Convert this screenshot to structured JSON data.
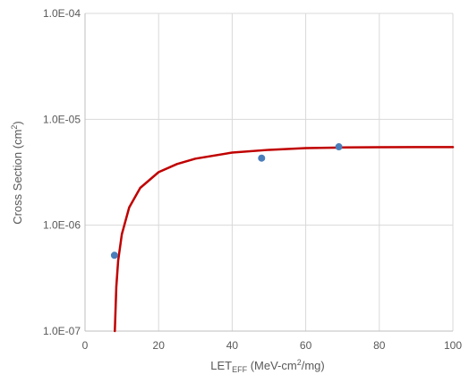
{
  "chart_data": {
    "type": "scatter",
    "title": "",
    "xlabel": {
      "main": "LET",
      "subscript": "EFF",
      "units_prefix": " (MeV-cm",
      "units_superscript": "2",
      "units_suffix": "/mg)"
    },
    "ylabel": {
      "main": "Cross Section (cm",
      "superscript": "2",
      "suffix": ")"
    },
    "xlim": [
      0,
      100
    ],
    "ylim": [
      1e-07,
      0.0001
    ],
    "yscale": "log",
    "grid": true,
    "legend": "none",
    "x_ticks": [
      "0",
      "20",
      "40",
      "60",
      "80",
      "100"
    ],
    "y_ticks": [
      "1.0E-07",
      "1.0E-06",
      "1.0E-05",
      "1.0E-04"
    ],
    "series": [
      {
        "kind": "points",
        "color": "#4a7ebb",
        "points": [
          {
            "x": 8,
            "y": 5.2e-07
          },
          {
            "x": 48,
            "y": 4.3e-06
          },
          {
            "x": 69,
            "y": 5.5e-06
          }
        ]
      },
      {
        "kind": "line",
        "color": "#c00000",
        "points": [
          {
            "x": 8.1,
            "y": 1e-07
          },
          {
            "x": 8.5,
            "y": 2.6e-07
          },
          {
            "x": 9,
            "y": 4.6e-07
          },
          {
            "x": 10,
            "y": 8.2e-07
          },
          {
            "x": 12,
            "y": 1.47e-06
          },
          {
            "x": 15,
            "y": 2.25e-06
          },
          {
            "x": 20,
            "y": 3.17e-06
          },
          {
            "x": 25,
            "y": 3.78e-06
          },
          {
            "x": 30,
            "y": 4.25e-06
          },
          {
            "x": 40,
            "y": 4.85e-06
          },
          {
            "x": 50,
            "y": 5.15e-06
          },
          {
            "x": 60,
            "y": 5.35e-06
          },
          {
            "x": 70,
            "y": 5.42e-06
          },
          {
            "x": 80,
            "y": 5.45e-06
          },
          {
            "x": 90,
            "y": 5.46e-06
          },
          {
            "x": 100,
            "y": 5.46e-06
          }
        ]
      }
    ]
  }
}
